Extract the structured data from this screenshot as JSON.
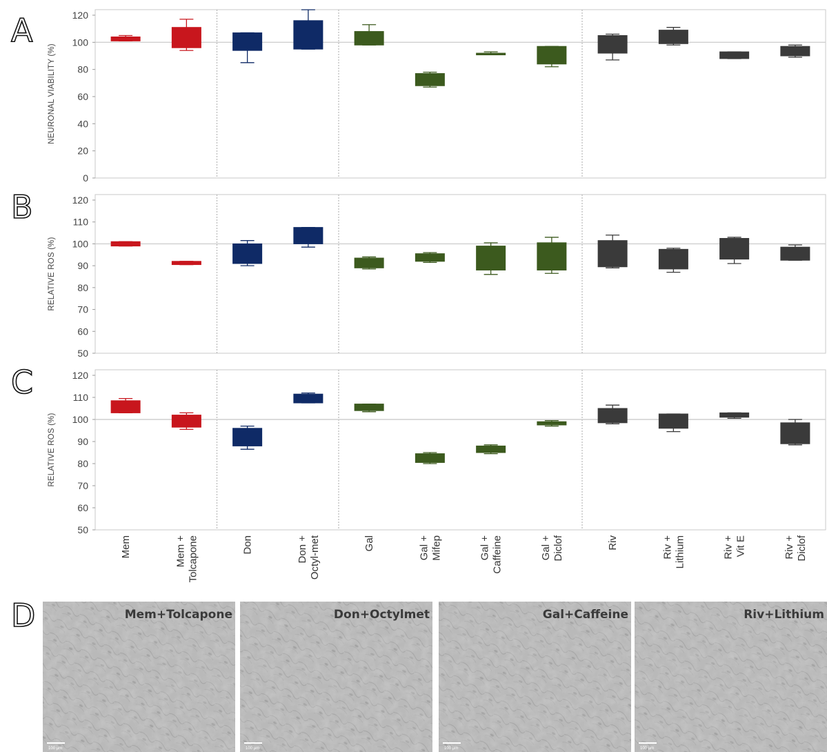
{
  "panel_labels": [
    "A",
    "B",
    "C",
    "D"
  ],
  "colors": {
    "Mem": "#c8161d",
    "Don": "#0f2a66",
    "Gal": "#3c5a1e",
    "Riv": "#3a3a3a"
  },
  "categories": [
    "Mem",
    "Mem +|Tolcapone",
    "Don",
    "Don +|Octyl-met",
    "Gal",
    "Gal +|Mifep",
    "Gal +|Caffeine",
    "Gal +|Diclof",
    "Riv",
    "Riv +|Lithium",
    "Riv +|Vit E",
    "Riv +|Diclof"
  ],
  "category_groups": [
    "Mem",
    "Mem",
    "Don",
    "Don",
    "Gal",
    "Gal",
    "Gal",
    "Gal",
    "Riv",
    "Riv",
    "Riv",
    "Riv"
  ],
  "chart_data": [
    {
      "type": "box",
      "panel": "A",
      "ylabel": "NEURONAL VIABILITY (%)",
      "ylim": [
        0,
        125
      ],
      "yticks": [
        0,
        20,
        40,
        60,
        80,
        100,
        120
      ],
      "reference_line": 100,
      "boxes": [
        {
          "category": "Mem",
          "q1": 101,
          "q3": 104,
          "min": 101,
          "max": 105
        },
        {
          "category": "Mem + Tolcapone",
          "q1": 96,
          "q3": 111,
          "min": 94,
          "max": 117
        },
        {
          "category": "Don",
          "q1": 94,
          "q3": 107,
          "min": 85,
          "max": 107
        },
        {
          "category": "Don + Octyl-met",
          "q1": 95,
          "q3": 116,
          "min": 95,
          "max": 124
        },
        {
          "category": "Gal",
          "q1": 98,
          "q3": 108,
          "min": 98,
          "max": 113
        },
        {
          "category": "Gal + Mifep",
          "q1": 68,
          "q3": 77,
          "min": 67,
          "max": 78
        },
        {
          "category": "Gal + Caffeine",
          "q1": 91,
          "q3": 92,
          "min": 91,
          "max": 93
        },
        {
          "category": "Gal + Diclof",
          "q1": 84,
          "q3": 97,
          "min": 82,
          "max": 97
        },
        {
          "category": "Riv",
          "q1": 92,
          "q3": 105,
          "min": 87,
          "max": 106
        },
        {
          "category": "Riv + Lithium",
          "q1": 99,
          "q3": 109,
          "min": 98,
          "max": 111
        },
        {
          "category": "Riv + Vit E",
          "q1": 88,
          "q3": 93,
          "min": 88,
          "max": 93
        },
        {
          "category": "Riv + Diclof",
          "q1": 90,
          "q3": 97,
          "min": 89,
          "max": 98
        }
      ]
    },
    {
      "type": "box",
      "panel": "B",
      "ylabel": "RELATIVE ROS (%)",
      "ylim": [
        50,
        120
      ],
      "yticks": [
        50,
        60,
        70,
        80,
        90,
        100,
        110,
        120
      ],
      "reference_line": 100,
      "boxes": [
        {
          "category": "Mem",
          "q1": 99,
          "q3": 101,
          "min": 99,
          "max": 101
        },
        {
          "category": "Mem + Tolcapone",
          "q1": 90.5,
          "q3": 92,
          "min": 90.5,
          "max": 92
        },
        {
          "category": "Don",
          "q1": 91,
          "q3": 100,
          "min": 90,
          "max": 101.5
        },
        {
          "category": "Don + Octyl-met",
          "q1": 100,
          "q3": 107.5,
          "min": 98.5,
          "max": 107.5
        },
        {
          "category": "Gal",
          "q1": 89,
          "q3": 93.5,
          "min": 88.5,
          "max": 94
        },
        {
          "category": "Gal + Mifep",
          "q1": 92,
          "q3": 95.5,
          "min": 91.5,
          "max": 96
        },
        {
          "category": "Gal + Caffeine",
          "q1": 88,
          "q3": 99,
          "min": 86,
          "max": 100.5
        },
        {
          "category": "Gal + Diclof",
          "q1": 88,
          "q3": 100.5,
          "min": 86.5,
          "max": 103
        },
        {
          "category": "Riv",
          "q1": 89.5,
          "q3": 101.5,
          "min": 89,
          "max": 104
        },
        {
          "category": "Riv + Lithium",
          "q1": 88.5,
          "q3": 97.5,
          "min": 87,
          "max": 98
        },
        {
          "category": "Riv + Vit E",
          "q1": 93,
          "q3": 102.5,
          "min": 91,
          "max": 103
        },
        {
          "category": "Riv + Diclof",
          "q1": 92.5,
          "q3": 98.5,
          "min": 92.5,
          "max": 99.5
        }
      ]
    },
    {
      "type": "box",
      "panel": "C",
      "ylabel": "RELATIVE ROS (%)",
      "ylim": [
        50,
        120
      ],
      "yticks": [
        50,
        60,
        70,
        80,
        90,
        100,
        110,
        120
      ],
      "reference_line": 100,
      "boxes": [
        {
          "category": "Mem",
          "q1": 103,
          "q3": 108.5,
          "min": 103,
          "max": 109.5
        },
        {
          "category": "Mem + Tolcapone",
          "q1": 96.5,
          "q3": 102,
          "min": 95.5,
          "max": 103
        },
        {
          "category": "Don",
          "q1": 88,
          "q3": 96,
          "min": 86.5,
          "max": 97
        },
        {
          "category": "Don + Octyl-met",
          "q1": 107.5,
          "q3": 111.5,
          "min": 107.5,
          "max": 112
        },
        {
          "category": "Gal",
          "q1": 104,
          "q3": 107,
          "min": 103.5,
          "max": 107
        },
        {
          "category": "Gal + Mifep",
          "q1": 80.5,
          "q3": 84.5,
          "min": 80,
          "max": 85
        },
        {
          "category": "Gal + Caffeine",
          "q1": 85,
          "q3": 88,
          "min": 84.5,
          "max": 88.5
        },
        {
          "category": "Gal + Diclof",
          "q1": 97.5,
          "q3": 99,
          "min": 97,
          "max": 99.5
        },
        {
          "category": "Riv",
          "q1": 98.5,
          "q3": 105,
          "min": 98,
          "max": 106.5
        },
        {
          "category": "Riv + Lithium",
          "q1": 96,
          "q3": 102.5,
          "min": 94.5,
          "max": 102.5
        },
        {
          "category": "Riv + Vit E",
          "q1": 101,
          "q3": 103,
          "min": 100.5,
          "max": 103
        },
        {
          "category": "Riv + Diclof",
          "q1": 89,
          "q3": 98.5,
          "min": 88.5,
          "max": 100
        }
      ]
    }
  ],
  "micrographs": [
    {
      "label": "Mem+Tolcapone",
      "scale": "100 µm"
    },
    {
      "label": "Don+Octylmet",
      "scale": "100 µm"
    },
    {
      "label": "Gal+Caffeine",
      "scale": "100 µm"
    },
    {
      "label": "Riv+Lithium",
      "scale": "100 µm"
    }
  ]
}
